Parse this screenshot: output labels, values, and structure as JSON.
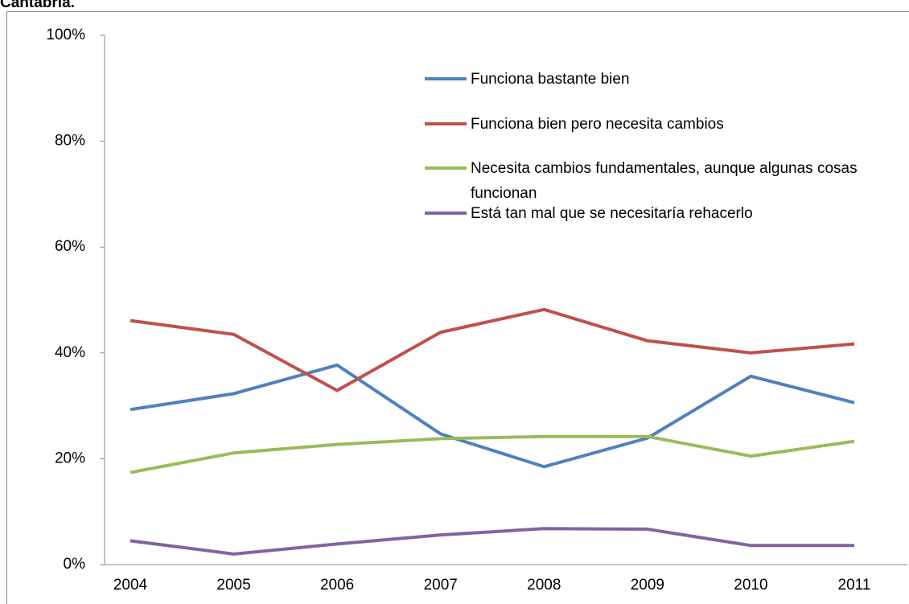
{
  "chart_data": {
    "type": "line",
    "title": "Cantabria.",
    "categories": [
      "2004",
      "2005",
      "2006",
      "2007",
      "2008",
      "2009",
      "2010",
      "2011"
    ],
    "series": [
      {
        "name": "Funciona bastante bien",
        "color": "#4f81bd",
        "values": [
          29.3,
          32.3,
          37.7,
          24.7,
          18.5,
          23.9,
          35.6,
          30.6
        ]
      },
      {
        "name": "Funciona bien pero necesita cambios",
        "color": "#c0504d",
        "values": [
          46.1,
          43.5,
          32.9,
          43.9,
          48.2,
          42.3,
          40.0,
          41.7
        ]
      },
      {
        "name": "Necesita cambios fundamentales, aunque algunas cosas funcionan",
        "color": "#9bbb59",
        "values": [
          17.4,
          21.1,
          22.7,
          23.8,
          24.2,
          24.2,
          20.5,
          23.3
        ]
      },
      {
        "name": "Está  tan mal que se necesitaría rehacerlo",
        "color": "#8064a2",
        "values": [
          4.5,
          2.0,
          3.9,
          5.6,
          6.8,
          6.7,
          3.6,
          3.6
        ]
      }
    ],
    "ylim": [
      0,
      100
    ],
    "yticks": [
      {
        "value": 0,
        "label": "0%"
      },
      {
        "value": 20,
        "label": "20%"
      },
      {
        "value": 40,
        "label": "40%"
      },
      {
        "value": 60,
        "label": "60%"
      },
      {
        "value": 80,
        "label": "80%"
      },
      {
        "value": 100,
        "label": "100%"
      }
    ],
    "grid": false,
    "legend": "upper-right"
  }
}
